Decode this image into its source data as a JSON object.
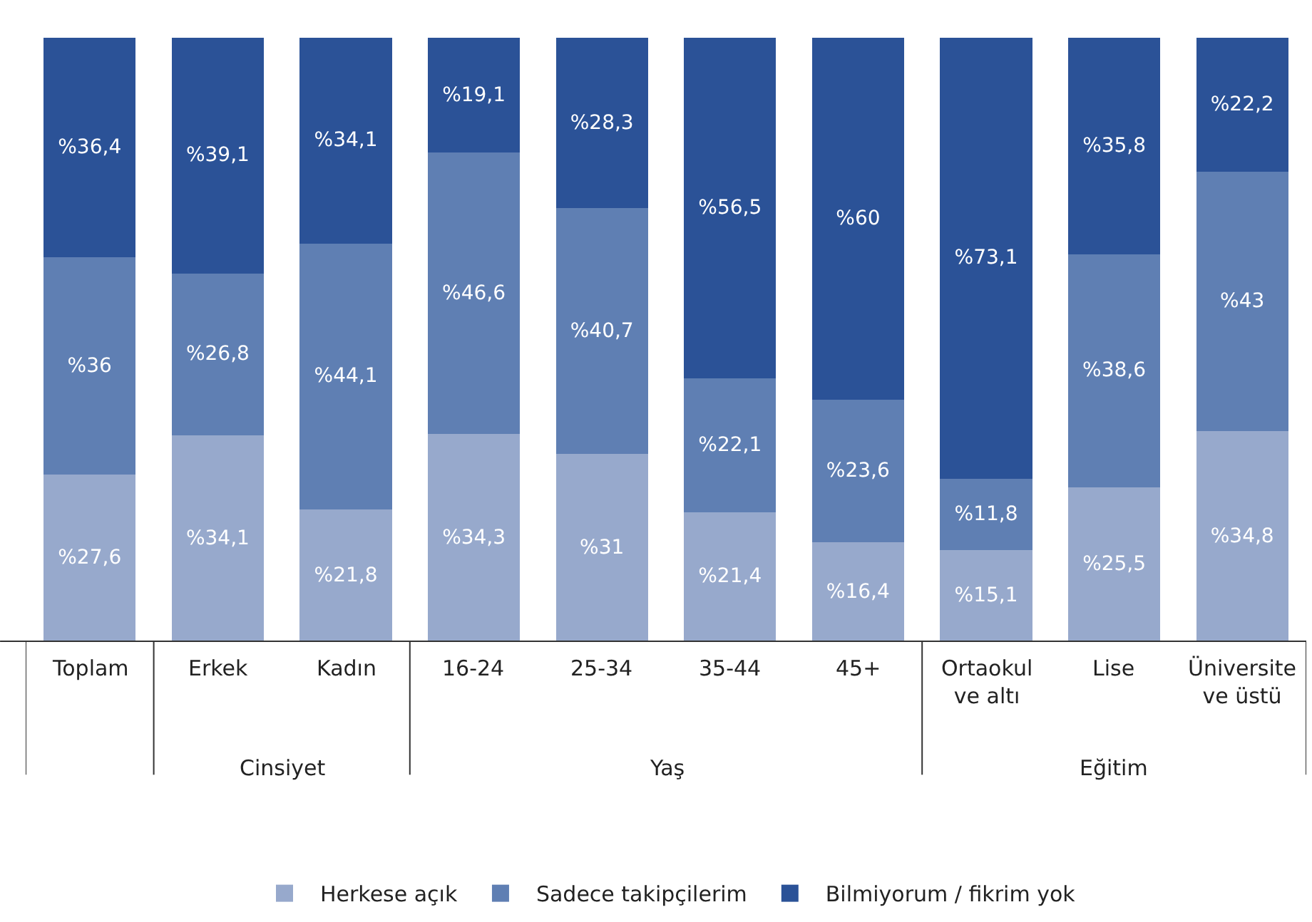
{
  "chart_data": {
    "type": "bar",
    "stacked": true,
    "legend": "bottom",
    "tick_labels": "x",
    "categories": [
      "Toplam",
      "Erkek",
      "Kadın",
      "16-24",
      "25-34",
      "35-44",
      "45+",
      "Ortaokul\nve altı",
      "Lise",
      "Üniversite\nve üstü"
    ],
    "series": [
      {
        "name": "Herkese açık",
        "color": "#97a9cc",
        "values": [
          27.6,
          34.1,
          21.8,
          34.3,
          31,
          21.4,
          16.4,
          15.1,
          25.5,
          34.8
        ],
        "value_labels": [
          "%27,6",
          "%34,1",
          "%21,8",
          "%34,3",
          "%31",
          "%21,4",
          "%16,4",
          "%15,1",
          "%25,5",
          "%34,8"
        ]
      },
      {
        "name": "Sadece takipçilerim",
        "color": "#5f7fb3",
        "values": [
          36,
          26.8,
          44.1,
          46.6,
          40.7,
          22.1,
          23.6,
          11.8,
          38.6,
          43
        ],
        "value_labels": [
          "%36",
          "%26,8",
          "%44,1",
          "%46,6",
          "%40,7",
          "%22,1",
          "%23,6",
          "%11,8",
          "%38,6",
          "%43"
        ]
      },
      {
        "name": "Bilmiyorum / fikrim yok",
        "color": "#2b5297",
        "values": [
          36.4,
          39.1,
          34.1,
          19.1,
          28.3,
          56.5,
          60,
          73.1,
          35.8,
          22.2
        ],
        "value_labels": [
          "%36,4",
          "%39,1",
          "%34,1",
          "%19,1",
          "%28,3",
          "%56,5",
          "%60",
          "%73,1",
          "%35,8",
          "%22,2"
        ]
      }
    ],
    "annotations": [
      "Cinsiyet",
      "Yaş",
      "Eğitim"
    ]
  }
}
